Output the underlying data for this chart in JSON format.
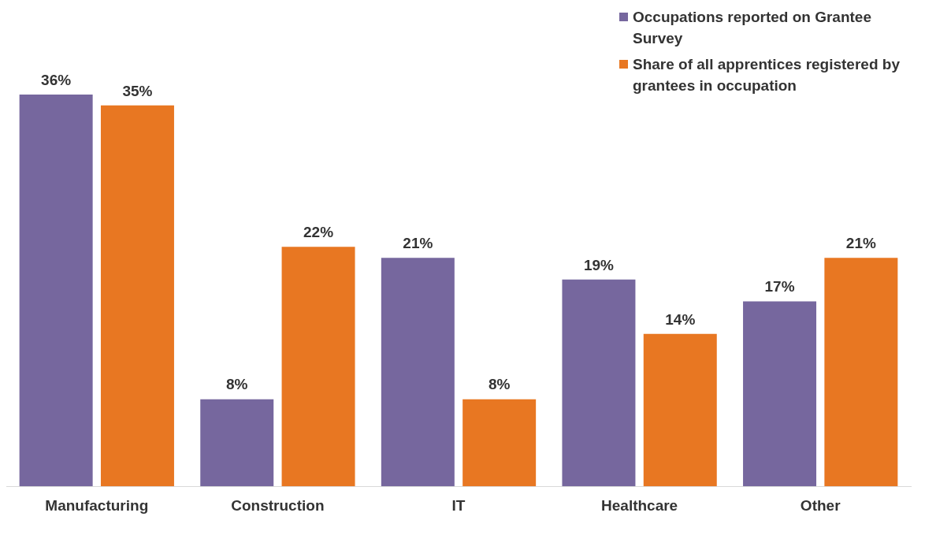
{
  "chart_data": {
    "type": "bar",
    "categories": [
      "Manufacturing",
      "Construction",
      "IT",
      "Healthcare",
      "Other"
    ],
    "series": [
      {
        "name": "Occupations reported on Grantee Survey",
        "color": "#76679e",
        "values": [
          36,
          8,
          21,
          19,
          17
        ],
        "value_labels": [
          "36%",
          "8%",
          "21%",
          "19%",
          "17%"
        ]
      },
      {
        "name": "Share of all apprentices registered by grantees in occupation",
        "color": "#e87722",
        "values": [
          35,
          22,
          8,
          14,
          21
        ],
        "value_labels": [
          "35%",
          "22%",
          "8%",
          "14%",
          "21%"
        ]
      }
    ],
    "legend": "top right",
    "grid": false,
    "tick_labels": "x"
  }
}
